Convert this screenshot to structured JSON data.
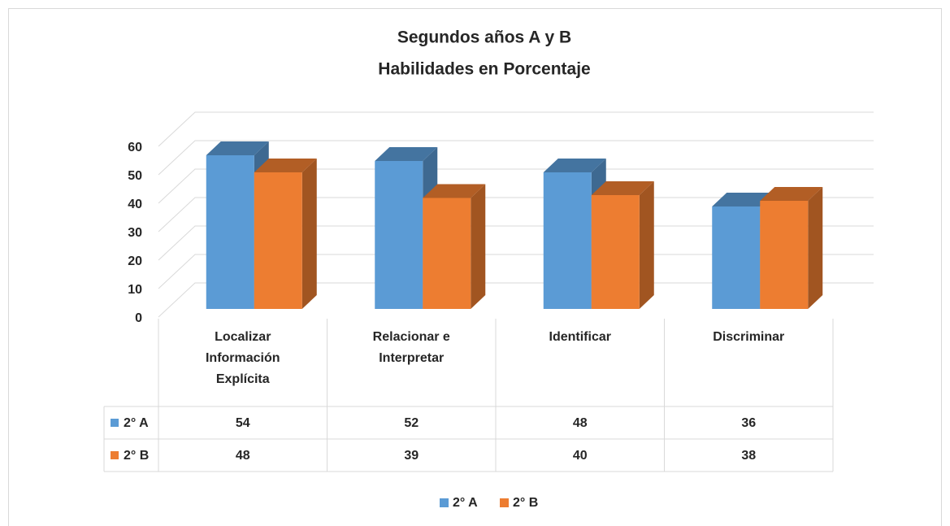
{
  "chart_data": {
    "type": "bar3d",
    "title": "Segundos años A y B",
    "subtitle": "Habilidades en Porcentaje",
    "categories": [
      "Localizar Información Explícita",
      "Relacionar e Interpretar",
      "Identificar",
      "Discriminar"
    ],
    "series": [
      {
        "name": "2° A",
        "color": "#5b9bd5",
        "values": [
          54,
          52,
          48,
          36
        ]
      },
      {
        "name": "2° B",
        "color": "#ed7d31",
        "values": [
          48,
          39,
          40,
          38
        ]
      }
    ],
    "ylim": [
      0,
      60
    ],
    "yticks": [
      0,
      10,
      20,
      30,
      40,
      50,
      60
    ],
    "grid": true,
    "legend": "bottom"
  }
}
